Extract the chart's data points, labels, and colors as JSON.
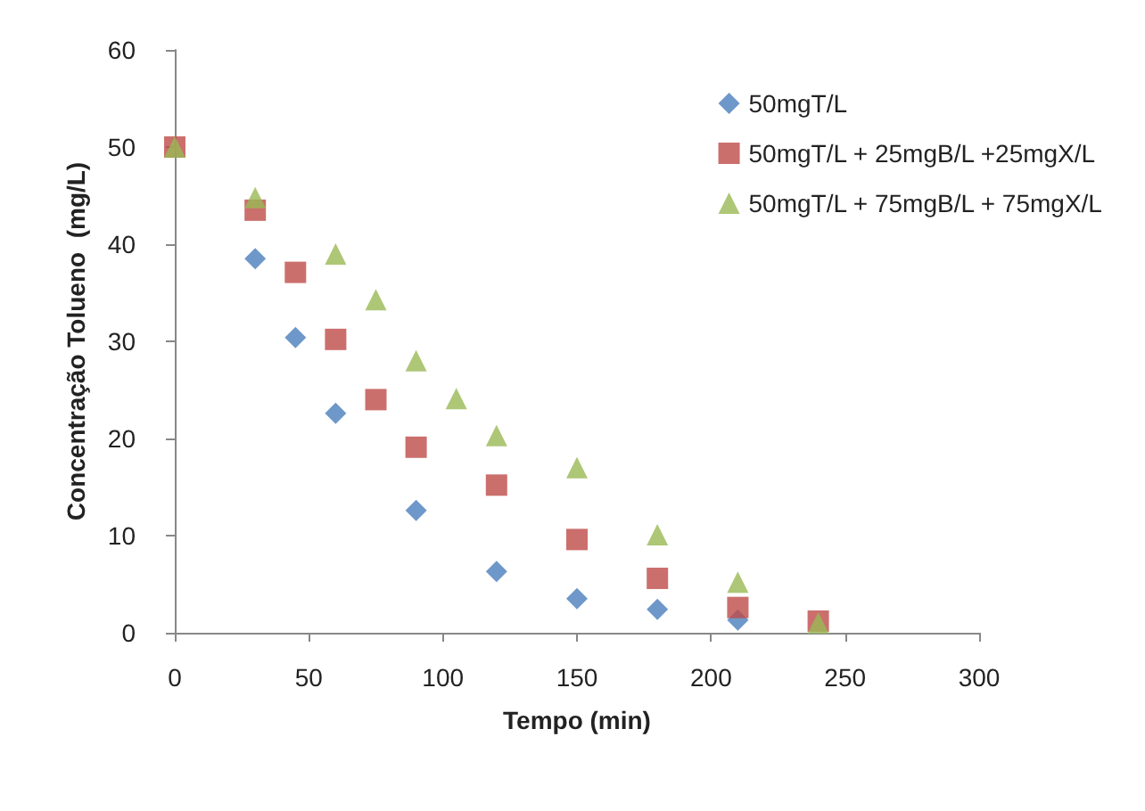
{
  "chart_data": {
    "type": "scatter",
    "xlabel": "Tempo (min)",
    "ylabel": "Concentração Tolueno  (mg/L)",
    "xlim": [
      0,
      300
    ],
    "xticks": [
      0,
      50,
      100,
      150,
      200,
      250,
      300
    ],
    "ylim": [
      0,
      60
    ],
    "yticks": [
      0,
      10,
      20,
      30,
      40,
      50,
      60
    ],
    "grid": false,
    "legend": "top right",
    "series": [
      {
        "name": "50mgT/L",
        "color": "#4a7ebb",
        "marker": "diamond",
        "x": [
          30,
          45,
          60,
          90,
          120,
          150,
          180,
          210
        ],
        "values": [
          38.5,
          30.4,
          22.6,
          12.6,
          6.3,
          3.5,
          2.4,
          1.3
        ]
      },
      {
        "name": "50mgT/L + 25mgB/L +25mgX/L",
        "color": "#be4b48",
        "marker": "square",
        "x": [
          0,
          30,
          45,
          60,
          75,
          90,
          120,
          150,
          180,
          210,
          240
        ],
        "values": [
          50,
          43.5,
          37.1,
          30.2,
          24,
          19.1,
          15.2,
          9.6,
          5.6,
          2.6,
          1.2
        ]
      },
      {
        "name": "50mgT/L + 75mgB/L + 75mgX/L",
        "color": "#98b954",
        "marker": "triangle",
        "x": [
          0,
          30,
          60,
          75,
          90,
          105,
          120,
          150,
          180,
          210,
          240
        ],
        "values": [
          50,
          44.8,
          39,
          34.3,
          28,
          24.1,
          20.3,
          17,
          10.1,
          5.2,
          1
        ]
      }
    ]
  }
}
